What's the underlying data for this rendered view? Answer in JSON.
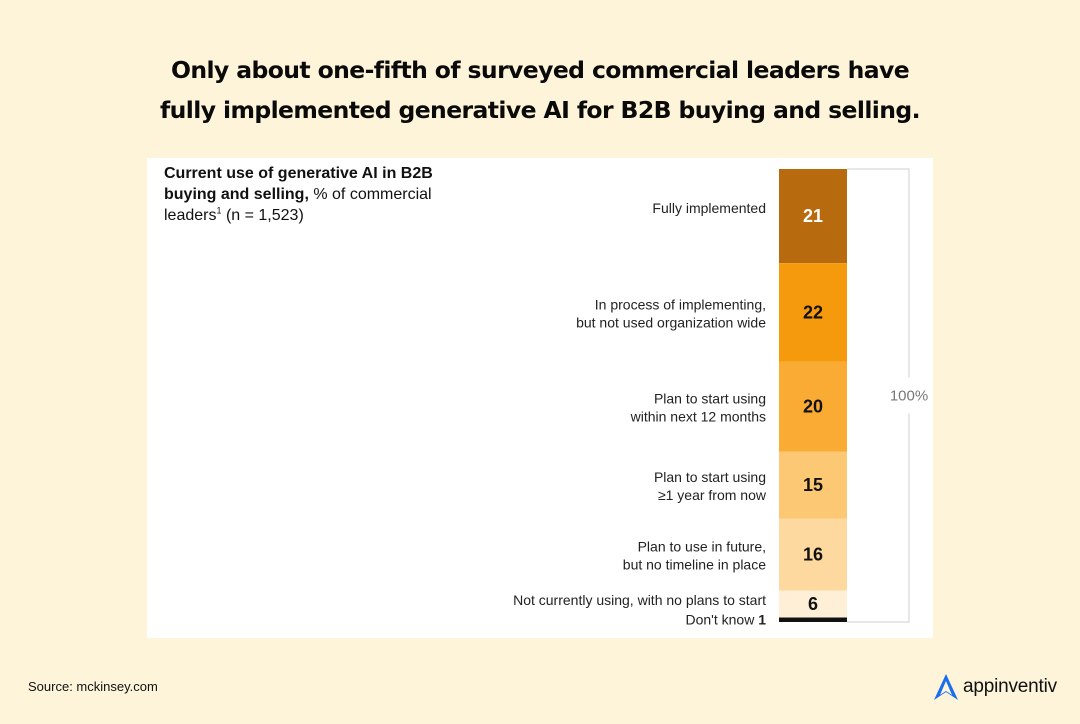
{
  "headline": {
    "line1": "Only about one-fifth of surveyed commercial leaders have",
    "line2": "fully implemented generative AI for B2B buying and selling."
  },
  "chart_data": {
    "type": "bar",
    "stacked": true,
    "orientation": "vertical",
    "subtitle_bold": "Current use of generative AI in B2B buying and selling,",
    "subtitle_rest": " % of commercial leaders",
    "footnote_mark": "1",
    "sample": " (n = 1,523)",
    "total_label": "100%",
    "segments": [
      {
        "label_line1": "Fully implemented",
        "label_line2": "",
        "value": 21,
        "value_label": "21",
        "color": "#b86a0e",
        "text_color": "#ffffff"
      },
      {
        "label_line1": "In process of implementing,",
        "label_line2": "but not used organization wide",
        "value": 22,
        "value_label": "22",
        "color": "#f59a0c",
        "text_color": "#111111"
      },
      {
        "label_line1": "Plan to start using",
        "label_line2": "within next 12 months",
        "value": 20,
        "value_label": "20",
        "color": "#f9ab34",
        "text_color": "#111111"
      },
      {
        "label_line1": "Plan to start using",
        "label_line2": "≥1 year from now",
        "value": 15,
        "value_label": "15",
        "color": "#fcc873",
        "text_color": "#111111"
      },
      {
        "label_line1": "Plan to use in future,",
        "label_line2": "but no timeline in place",
        "value": 16,
        "value_label": "16",
        "color": "#fdd9a0",
        "text_color": "#111111"
      },
      {
        "label_line1": "Not currently using, with no plans to start",
        "label_line2": "",
        "value": 6,
        "value_label": "6",
        "color": "#feefd6",
        "text_color": "#111111"
      },
      {
        "label_line1": "Don't know",
        "label_line2": "",
        "value": 1,
        "value_label": "1",
        "color": "#111111",
        "text_color": "#111111"
      }
    ]
  },
  "source": "Source: mckinsey.com",
  "brand": {
    "name": "appinventiv",
    "color": "#1a6cf0"
  }
}
